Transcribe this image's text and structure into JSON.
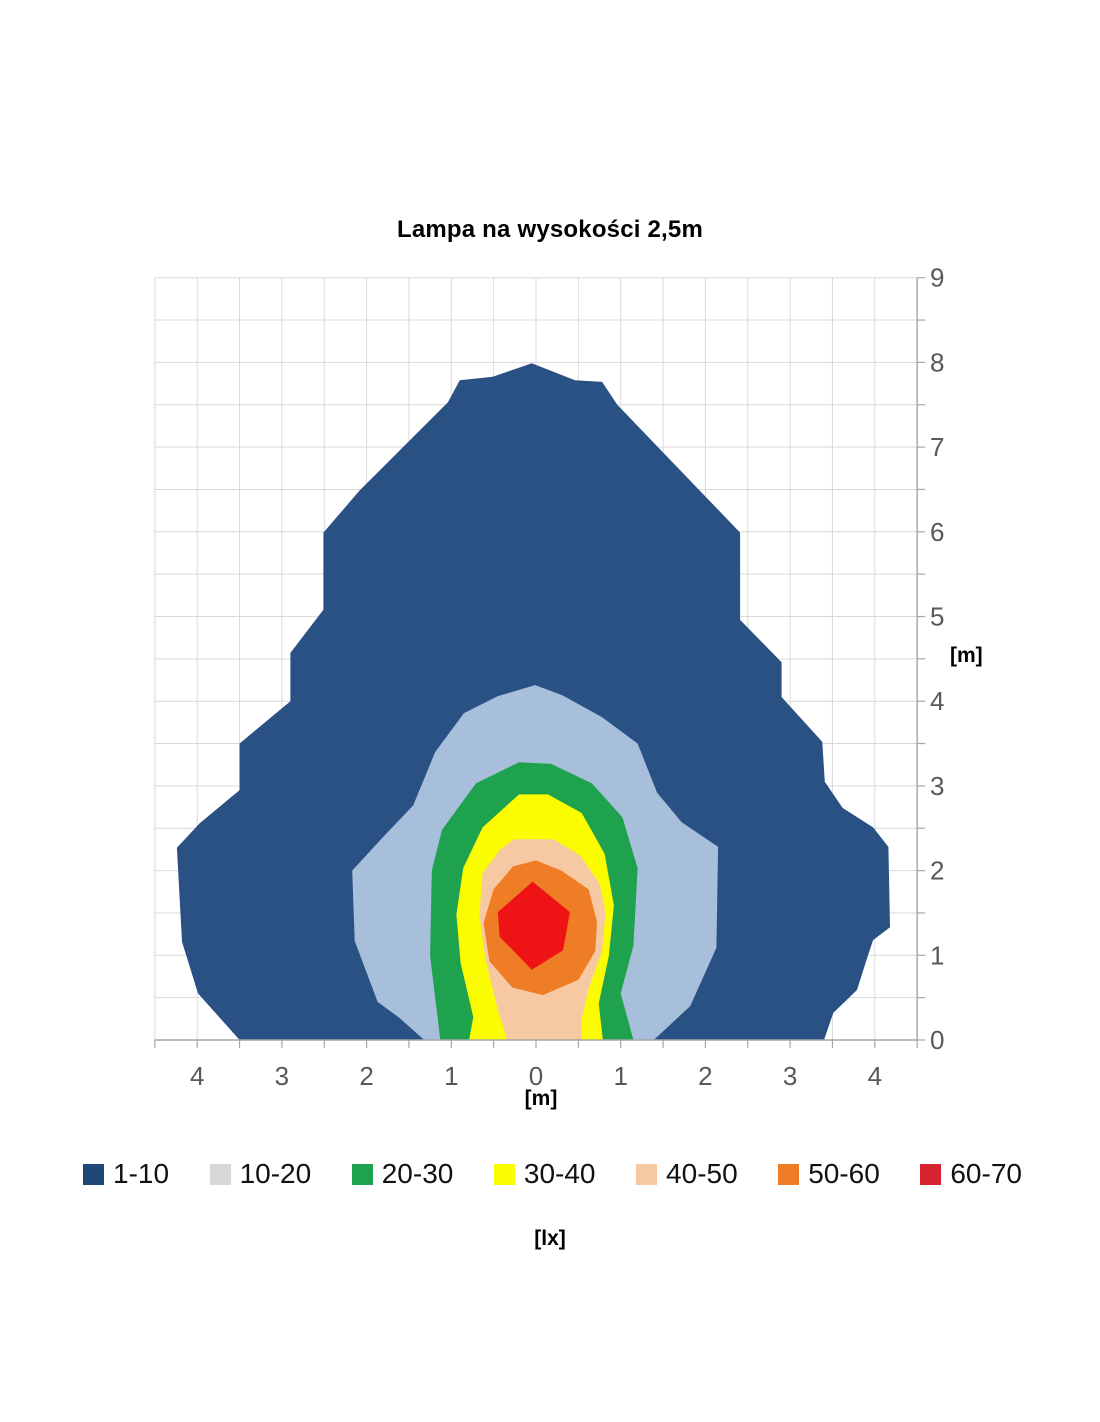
{
  "chart_data": {
    "type": "heatmap",
    "subtype": "filled-isolux-contour-map",
    "title": "Lampa na wysokości 2,5m",
    "xlabel": "[m]",
    "ylabel": "[m]",
    "unit_label": "[lx]",
    "x_range": [
      -4.5,
      4.5
    ],
    "y_range": [
      0,
      9
    ],
    "grid": true,
    "grid_step": 0.5,
    "x_ticks": {
      "values": [
        -4,
        -3,
        -2,
        -1,
        0,
        1,
        2,
        3,
        4
      ],
      "labels": [
        "4",
        "3",
        "2",
        "1",
        "0",
        "1",
        "2",
        "3",
        "4"
      ]
    },
    "y_ticks": {
      "values": [
        0,
        1,
        2,
        3,
        4,
        5,
        6,
        7,
        8,
        9
      ],
      "labels": [
        "0",
        "1",
        "2",
        "3",
        "4",
        "5",
        "6",
        "7",
        "8",
        "9"
      ]
    },
    "colors": {
      "grid": "#D9D9D9",
      "axis": "#A6A6A6",
      "tick_text": "#595959",
      "title_text": "#000000"
    },
    "legend": {
      "position": "bottom",
      "entries": [
        {
          "label": "1-10",
          "swatch_color": "#1F4876"
        },
        {
          "label": "10-20",
          "swatch_color": "#D8D8D8"
        },
        {
          "label": "20-30",
          "swatch_color": "#1EA24D"
        },
        {
          "label": "30-40",
          "swatch_color": "#FCFC00"
        },
        {
          "label": "40-50",
          "swatch_color": "#F6C9A3"
        },
        {
          "label": "50-60",
          "swatch_color": "#EF7D25"
        },
        {
          "label": "60-70",
          "swatch_color": "#D62430"
        }
      ]
    },
    "bands": [
      {
        "range_lx": "1-10",
        "color": "#2A5183",
        "polygon": [
          [
            -3.5,
            0
          ],
          [
            -3.99,
            0.55
          ],
          [
            -4.18,
            1.16
          ],
          [
            -4.24,
            2.27
          ],
          [
            -3.97,
            2.56
          ],
          [
            -3.5,
            2.95
          ],
          [
            -3.5,
            3.5
          ],
          [
            -2.9,
            4.0
          ],
          [
            -2.9,
            4.57
          ],
          [
            -2.51,
            5.08
          ],
          [
            -2.51,
            5.99
          ],
          [
            -2.08,
            6.49
          ],
          [
            -1.04,
            7.53
          ],
          [
            -0.9,
            7.79
          ],
          [
            -0.51,
            7.83
          ],
          [
            -0.05,
            7.99
          ],
          [
            0.46,
            7.79
          ],
          [
            0.78,
            7.77
          ],
          [
            0.96,
            7.5
          ],
          [
            2.41,
            5.99
          ],
          [
            2.41,
            4.96
          ],
          [
            2.9,
            4.46
          ],
          [
            2.9,
            4.05
          ],
          [
            3.38,
            3.52
          ],
          [
            3.41,
            3.05
          ],
          [
            3.62,
            2.74
          ],
          [
            3.98,
            2.51
          ],
          [
            4.16,
            2.28
          ],
          [
            4.18,
            1.33
          ],
          [
            3.98,
            1.18
          ],
          [
            3.92,
            1.0
          ],
          [
            3.79,
            0.59
          ],
          [
            3.51,
            0.32
          ],
          [
            3.4,
            0
          ]
        ]
      },
      {
        "range_lx": "10-20",
        "color": "#A8BFDC",
        "polygon": [
          [
            -1.32,
            0
          ],
          [
            -1.61,
            0.26
          ],
          [
            -1.87,
            0.45
          ],
          [
            -2.14,
            1.17
          ],
          [
            -2.17,
            2.0
          ],
          [
            -1.83,
            2.37
          ],
          [
            -1.45,
            2.77
          ],
          [
            -1.19,
            3.4
          ],
          [
            -0.85,
            3.86
          ],
          [
            -0.45,
            4.06
          ],
          [
            -0.01,
            4.19
          ],
          [
            0.31,
            4.07
          ],
          [
            0.78,
            3.81
          ],
          [
            1.2,
            3.5
          ],
          [
            1.43,
            2.92
          ],
          [
            1.72,
            2.57
          ],
          [
            2.15,
            2.28
          ],
          [
            2.13,
            1.09
          ],
          [
            1.82,
            0.4
          ],
          [
            1.39,
            0
          ]
        ]
      },
      {
        "range_lx": "20-30",
        "color": "#1EA24D",
        "polygon": [
          [
            -1.13,
            0
          ],
          [
            -1.25,
            0.99
          ],
          [
            -1.23,
            2.0
          ],
          [
            -1.11,
            2.48
          ],
          [
            -0.71,
            3.03
          ],
          [
            -0.2,
            3.28
          ],
          [
            0.18,
            3.26
          ],
          [
            0.66,
            3.03
          ],
          [
            1.02,
            2.63
          ],
          [
            1.2,
            2.03
          ],
          [
            1.15,
            1.11
          ],
          [
            1.0,
            0.55
          ],
          [
            1.15,
            0
          ]
        ]
      },
      {
        "range_lx": "30-40",
        "color": "#FCFC00",
        "polygon": [
          [
            -0.79,
            0
          ],
          [
            -0.74,
            0.27
          ],
          [
            -0.89,
            0.91
          ],
          [
            -0.94,
            1.48
          ],
          [
            -0.86,
            2.03
          ],
          [
            -0.63,
            2.51
          ],
          [
            -0.2,
            2.9
          ],
          [
            0.14,
            2.9
          ],
          [
            0.54,
            2.68
          ],
          [
            0.81,
            2.2
          ],
          [
            0.92,
            1.59
          ],
          [
            0.86,
            0.99
          ],
          [
            0.74,
            0.43
          ],
          [
            0.79,
            0
          ]
        ]
      },
      {
        "range_lx": "40-50",
        "color": "#F6C9A3",
        "polygon": [
          [
            -0.34,
            0
          ],
          [
            -0.46,
            0.39
          ],
          [
            -0.6,
            0.97
          ],
          [
            -0.67,
            1.48
          ],
          [
            -0.63,
            1.97
          ],
          [
            -0.42,
            2.25
          ],
          [
            -0.26,
            2.37
          ],
          [
            0.21,
            2.37
          ],
          [
            0.52,
            2.18
          ],
          [
            0.75,
            1.85
          ],
          [
            0.82,
            1.5
          ],
          [
            0.78,
            1.05
          ],
          [
            0.62,
            0.6
          ],
          [
            0.54,
            0.25
          ],
          [
            0.54,
            0
          ]
        ]
      },
      {
        "range_lx": "50-60",
        "color": "#EF7D25",
        "polygon": [
          [
            0.0,
            2.12
          ],
          [
            0.3,
            2.0
          ],
          [
            0.62,
            1.78
          ],
          [
            0.72,
            1.4
          ],
          [
            0.7,
            1.05
          ],
          [
            0.5,
            0.71
          ],
          [
            0.08,
            0.53
          ],
          [
            -0.28,
            0.62
          ],
          [
            -0.55,
            0.93
          ],
          [
            -0.62,
            1.38
          ],
          [
            -0.5,
            1.78
          ],
          [
            -0.27,
            2.05
          ]
        ]
      },
      {
        "range_lx": "60-70",
        "color": "#EE1416",
        "polygon": [
          [
            -0.04,
            1.87
          ],
          [
            0.4,
            1.51
          ],
          [
            0.32,
            1.06
          ],
          [
            -0.05,
            0.83
          ],
          [
            -0.43,
            1.22
          ],
          [
            -0.45,
            1.51
          ]
        ]
      }
    ]
  }
}
